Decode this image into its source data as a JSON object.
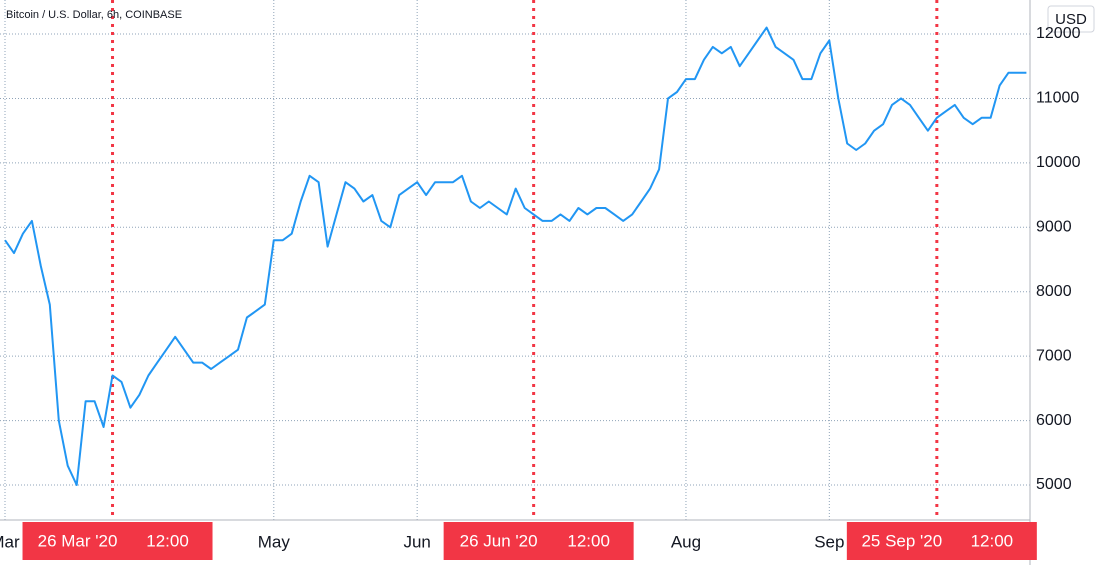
{
  "chart_data": {
    "type": "line",
    "title": "Bitcoin / U.S. Dollar, 6h, COINBASE",
    "currency": "USD",
    "color": "#2196f3",
    "highlight_color": "#f23645",
    "grid": true,
    "categories": [
      "Mar",
      null,
      null,
      null,
      null,
      null,
      null,
      null,
      null,
      null,
      null,
      null,
      {
        "label": "26 Mar '20",
        "time": "12:00",
        "highlight": true
      },
      null,
      null,
      null,
      null,
      null,
      null,
      null,
      null,
      null,
      null,
      null,
      null,
      null,
      null,
      null,
      null,
      null,
      "May",
      null,
      null,
      null,
      null,
      null,
      null,
      null,
      null,
      null,
      null,
      null,
      null,
      null,
      null,
      null,
      "Jun",
      null,
      null,
      null,
      null,
      null,
      null,
      null,
      null,
      null,
      null,
      null,
      null,
      {
        "label": "26 Jun '20",
        "time": "12:00",
        "highlight": true
      },
      null,
      null,
      null,
      null,
      null,
      null,
      null,
      null,
      null,
      null,
      null,
      null,
      null,
      null,
      null,
      null,
      "Aug",
      null,
      null,
      null,
      null,
      null,
      null,
      null,
      null,
      null,
      null,
      null,
      null,
      null,
      null,
      null,
      "Sep",
      null,
      null,
      null,
      null,
      null,
      null,
      null,
      null,
      null,
      null,
      null,
      {
        "label": "25 Sep '20",
        "time": "12:00",
        "highlight": true
      },
      null,
      null,
      null,
      null,
      null,
      null,
      null,
      null,
      null,
      null
    ],
    "values": [
      8800,
      8600,
      8900,
      9100,
      8400,
      7800,
      6000,
      5300,
      5000,
      6300,
      6300,
      5900,
      6700,
      6600,
      6200,
      6400,
      6700,
      6900,
      7100,
      7300,
      7100,
      6900,
      6900,
      6800,
      6900,
      7000,
      7100,
      7600,
      7700,
      7800,
      8800,
      8800,
      8900,
      9400,
      9800,
      9700,
      8700,
      9200,
      9700,
      9600,
      9400,
      9500,
      9100,
      9000,
      9500,
      9600,
      9700,
      9500,
      9700,
      9700,
      9700,
      9800,
      9400,
      9300,
      9400,
      9300,
      9200,
      9600,
      9300,
      9200,
      9100,
      9100,
      9200,
      9100,
      9300,
      9200,
      9300,
      9300,
      9200,
      9100,
      9200,
      9400,
      9600,
      9900,
      11000,
      11100,
      11300,
      11300,
      11600,
      11800,
      11700,
      11800,
      11500,
      11700,
      11900,
      12100,
      11800,
      11700,
      11600,
      11300,
      11300,
      11700,
      11900,
      11000,
      10300,
      10200,
      10300,
      10500,
      10600,
      10900,
      11000,
      10900,
      10700,
      10500,
      10700,
      10800,
      10900,
      10700,
      10600,
      10700,
      10700,
      11200,
      11400,
      11400,
      11400
    ],
    "ylim": [
      4457,
      12528
    ],
    "yticks": [
      5000,
      6000,
      7000,
      8000,
      9000,
      10000,
      11000,
      12000
    ]
  }
}
